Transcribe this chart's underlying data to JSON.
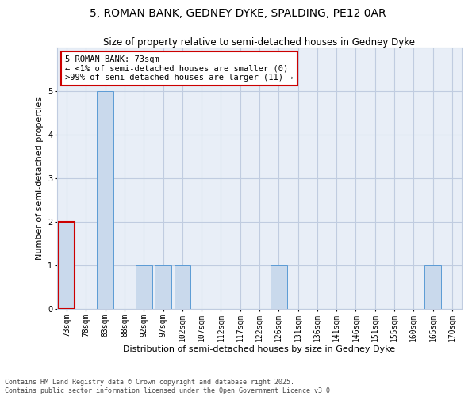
{
  "title_line1": "5, ROMAN BANK, GEDNEY DYKE, SPALDING, PE12 0AR",
  "title_line2": "Size of property relative to semi-detached houses in Gedney Dyke",
  "categories": [
    "73sqm",
    "78sqm",
    "83sqm",
    "88sqm",
    "92sqm",
    "97sqm",
    "102sqm",
    "107sqm",
    "112sqm",
    "117sqm",
    "122sqm",
    "126sqm",
    "131sqm",
    "136sqm",
    "141sqm",
    "146sqm",
    "151sqm",
    "155sqm",
    "160sqm",
    "165sqm",
    "170sqm"
  ],
  "values": [
    2,
    0,
    5,
    0,
    1,
    1,
    1,
    0,
    0,
    0,
    0,
    1,
    0,
    0,
    0,
    0,
    0,
    0,
    0,
    1,
    0
  ],
  "highlight_index": 0,
  "bar_color": "#c9d9ec",
  "bar_edge_color": "#5b9bd5",
  "highlight_bar_edge_color": "#cc0000",
  "xlabel": "Distribution of semi-detached houses by size in Gedney Dyke",
  "ylabel": "Number of semi-detached properties",
  "ylim": [
    0,
    6
  ],
  "yticks": [
    0,
    1,
    2,
    3,
    4,
    5
  ],
  "annotation_title": "5 ROMAN BANK: 73sqm",
  "annotation_line1": "← <1% of semi-detached houses are smaller (0)",
  "annotation_line2": ">99% of semi-detached houses are larger (11) →",
  "annotation_box_color": "#ffffff",
  "annotation_box_edge_color": "#cc0000",
  "footer_line1": "Contains HM Land Registry data © Crown copyright and database right 2025.",
  "footer_line2": "Contains public sector information licensed under the Open Government Licence v3.0.",
  "bg_color": "#ffffff",
  "plot_bg_color": "#e8eef7",
  "grid_color": "#c0cce0",
  "title_fontsize": 10,
  "subtitle_fontsize": 8.5,
  "axis_label_fontsize": 8,
  "tick_fontsize": 7,
  "annotation_fontsize": 7.5,
  "footer_fontsize": 6
}
